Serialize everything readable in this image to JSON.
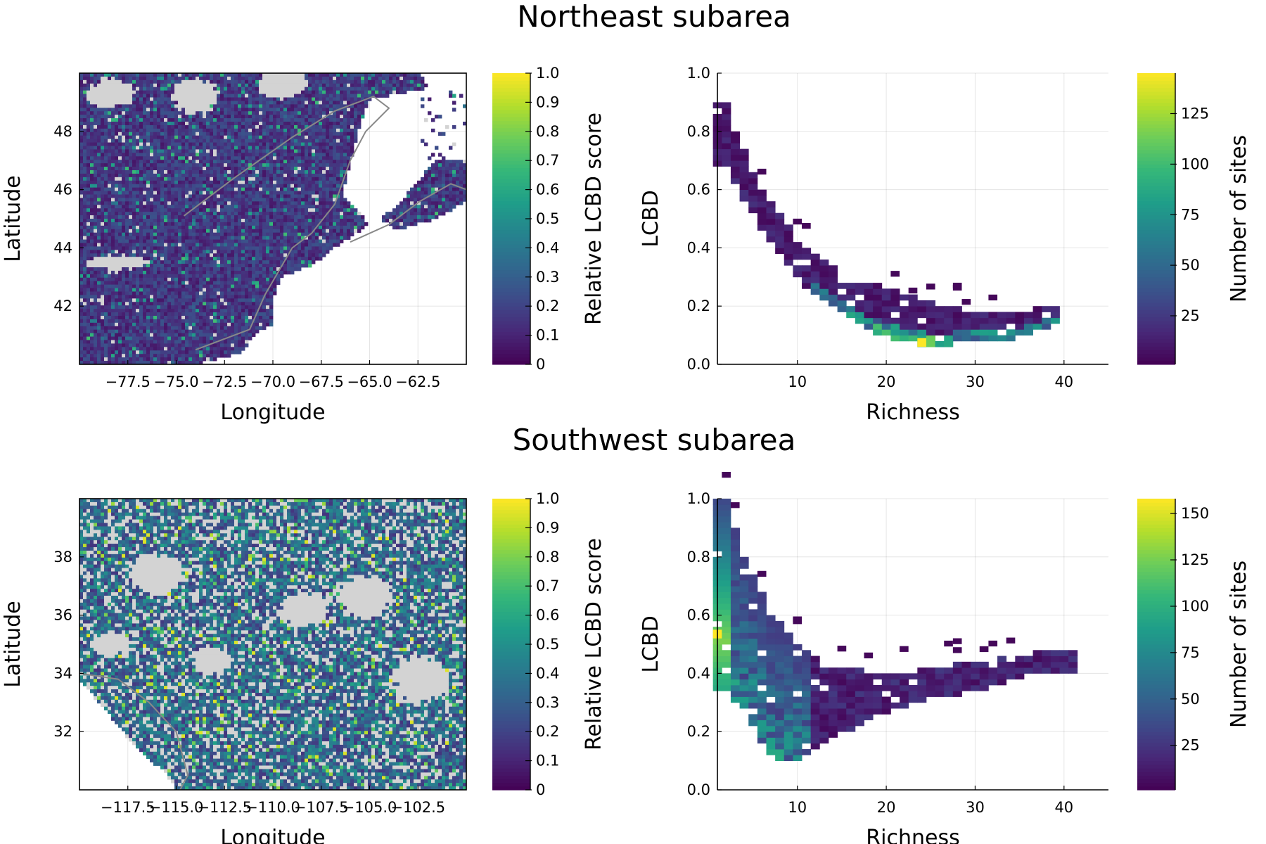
{
  "chart_data": [
    {
      "id": "ne_map",
      "type": "heatmap",
      "subtitle": "Northeast subarea",
      "xlabel": "Longitude",
      "ylabel": "Latitude",
      "xticks": [
        "−77.5",
        "−75.0",
        "−72.5",
        "−70.0",
        "−67.5",
        "−65.0",
        "−62.5"
      ],
      "xtick_values": [
        -77.5,
        -75.0,
        -72.5,
        -70.0,
        -67.5,
        -65.0,
        -62.5
      ],
      "yticks": [
        "42",
        "44",
        "46",
        "48"
      ],
      "ytick_values": [
        42,
        44,
        46,
        48
      ],
      "xlim": [
        -80.0,
        -60.0
      ],
      "ylim": [
        40.0,
        50.0
      ],
      "colorbar": {
        "label": "Relative LCBD score",
        "ticks": [
          "0",
          "0.1",
          "0.2",
          "0.3",
          "0.4",
          "0.5",
          "0.6",
          "0.7",
          "0.8",
          "0.9",
          "1.0"
        ],
        "tick_values": [
          0,
          0.1,
          0.2,
          0.3,
          0.4,
          0.5,
          0.6,
          0.7,
          0.8,
          0.9,
          1.0
        ],
        "range": [
          0,
          1
        ],
        "colormap": "viridis"
      },
      "no_data_color": "#d3d3d3",
      "boundary_color": "#888888",
      "grid": true,
      "description_of_values": "dense grid of relative LCBD scores, mostly 0.05-0.25 with scattered higher cells"
    },
    {
      "id": "ne_hist",
      "type": "heatmap",
      "xlabel": "Richness",
      "ylabel": "LCBD",
      "xticks": [
        "10",
        "20",
        "30",
        "40"
      ],
      "xtick_values": [
        10,
        20,
        30,
        40
      ],
      "yticks": [
        "0.0",
        "0.2",
        "0.4",
        "0.6",
        "0.8",
        "1.0"
      ],
      "ytick_values": [
        0.0,
        0.2,
        0.4,
        0.6,
        0.8,
        1.0
      ],
      "xlim": [
        1,
        45
      ],
      "ylim": [
        0.0,
        1.0
      ],
      "colorbar": {
        "label": "Number of sites",
        "ticks": [
          "25",
          "50",
          "75",
          "100",
          "125"
        ],
        "tick_values": [
          25,
          50,
          75,
          100,
          125
        ],
        "range": [
          1,
          145
        ],
        "colormap": "viridis"
      },
      "grid": true,
      "ridge": [
        {
          "richness": 2,
          "lcbd_low": 0.68,
          "lcbd_high": 0.9
        },
        {
          "richness": 5,
          "lcbd_low": 0.52,
          "lcbd_high": 0.65
        },
        {
          "richness": 10,
          "lcbd_low": 0.3,
          "lcbd_high": 0.42
        },
        {
          "richness": 15,
          "lcbd_low": 0.18,
          "lcbd_high": 0.3
        },
        {
          "richness": 20,
          "lcbd_low": 0.1,
          "lcbd_high": 0.25
        },
        {
          "richness": 25,
          "lcbd_low": 0.07,
          "lcbd_high": 0.2
        },
        {
          "richness": 30,
          "lcbd_low": 0.09,
          "lcbd_high": 0.17
        },
        {
          "richness": 35,
          "lcbd_low": 0.1,
          "lcbd_high": 0.17
        },
        {
          "richness": 39,
          "lcbd_low": 0.14,
          "lcbd_high": 0.19
        }
      ],
      "peak": {
        "richness": 24,
        "lcbd": 0.07,
        "count": 145
      }
    },
    {
      "id": "sw_map",
      "type": "heatmap",
      "subtitle": "Southwest subarea",
      "xlabel": "Longitude",
      "ylabel": "Latitude",
      "xticks": [
        "−117.5",
        "−115.0",
        "−112.5",
        "−110.0",
        "−107.5",
        "−105.0",
        "−102.5"
      ],
      "xtick_values": [
        -117.5,
        -115.0,
        -112.5,
        -110.0,
        -107.5,
        -105.0,
        -102.5
      ],
      "yticks": [
        "32",
        "34",
        "36",
        "38"
      ],
      "ytick_values": [
        32,
        34,
        36,
        38
      ],
      "xlim": [
        -120.0,
        -100.0
      ],
      "ylim": [
        30.0,
        40.0
      ],
      "colorbar": {
        "label": "Relative LCBD score",
        "ticks": [
          "0",
          "0.1",
          "0.2",
          "0.3",
          "0.4",
          "0.5",
          "0.6",
          "0.7",
          "0.8",
          "0.9",
          "1.0"
        ],
        "tick_values": [
          0,
          0.1,
          0.2,
          0.3,
          0.4,
          0.5,
          0.6,
          0.7,
          0.8,
          0.9,
          1.0
        ],
        "range": [
          0,
          1
        ],
        "colormap": "viridis"
      },
      "no_data_color": "#d3d3d3",
      "boundary_color": "#888888",
      "grid": true,
      "description_of_values": "grid of relative LCBD scores, mostly 0.15-0.45 with many no-data cells and scattered high values"
    },
    {
      "id": "sw_hist",
      "type": "heatmap",
      "xlabel": "Richness",
      "ylabel": "LCBD",
      "xticks": [
        "10",
        "20",
        "30",
        "40"
      ],
      "xtick_values": [
        10,
        20,
        30,
        40
      ],
      "yticks": [
        "0.0",
        "0.2",
        "0.4",
        "0.6",
        "0.8",
        "1.0"
      ],
      "ytick_values": [
        0.0,
        0.2,
        0.4,
        0.6,
        0.8,
        1.0
      ],
      "xlim": [
        1,
        45
      ],
      "ylim": [
        0.0,
        1.0
      ],
      "colorbar": {
        "label": "Number of sites",
        "ticks": [
          "25",
          "50",
          "75",
          "100",
          "125",
          "150"
        ],
        "tick_values": [
          25,
          50,
          75,
          100,
          125,
          150
        ],
        "range": [
          1,
          158
        ],
        "colormap": "viridis"
      },
      "grid": true,
      "ridge": [
        {
          "richness": 2,
          "lcbd_low": 0.35,
          "lcbd_high": 1.0
        },
        {
          "richness": 4,
          "lcbd_low": 0.28,
          "lcbd_high": 0.8
        },
        {
          "richness": 7,
          "lcbd_low": 0.12,
          "lcbd_high": 0.6
        },
        {
          "richness": 10,
          "lcbd_low": 0.11,
          "lcbd_high": 0.5
        },
        {
          "richness": 13,
          "lcbd_low": 0.17,
          "lcbd_high": 0.42
        },
        {
          "richness": 18,
          "lcbd_low": 0.25,
          "lcbd_high": 0.4
        },
        {
          "richness": 23,
          "lcbd_low": 0.31,
          "lcbd_high": 0.4
        },
        {
          "richness": 30,
          "lcbd_low": 0.35,
          "lcbd_high": 0.43
        },
        {
          "richness": 36,
          "lcbd_low": 0.4,
          "lcbd_high": 0.46
        },
        {
          "richness": 41,
          "lcbd_low": 0.4,
          "lcbd_high": 0.47
        }
      ],
      "peak": {
        "richness": 1,
        "lcbd": 0.53,
        "count": 158
      }
    }
  ]
}
